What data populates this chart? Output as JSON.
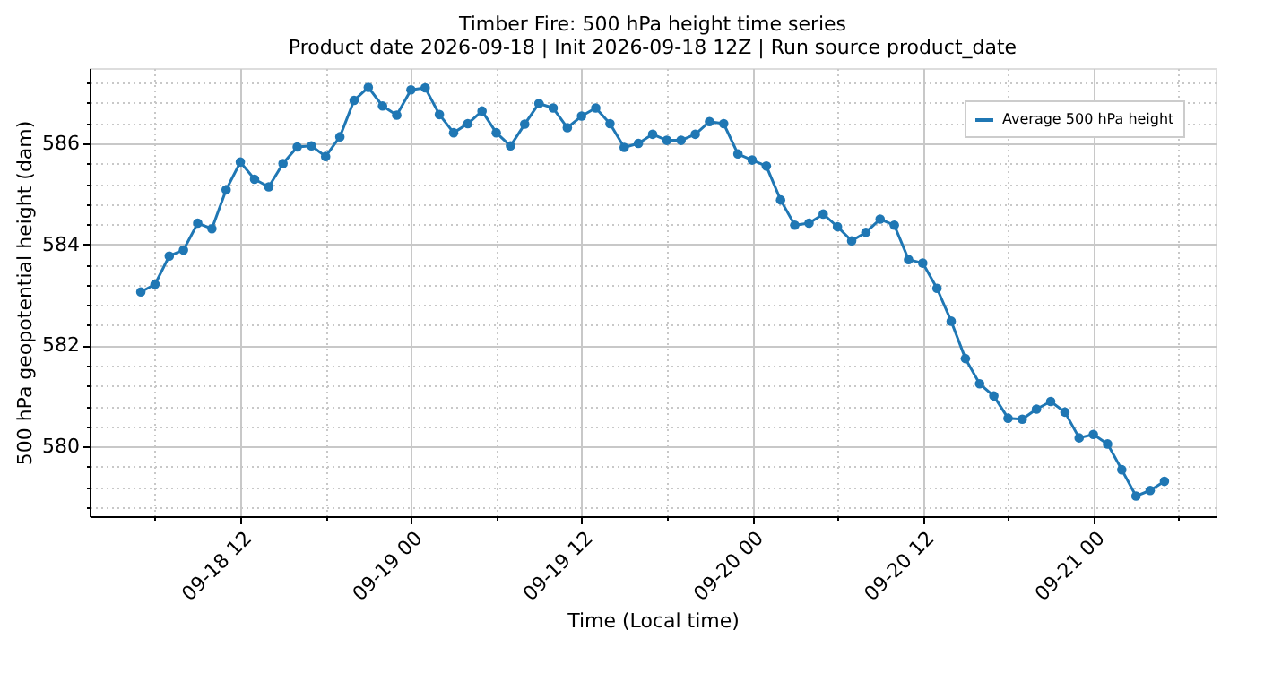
{
  "chart_data": {
    "type": "line",
    "title": "Timber Fire: 500 hPa height time series",
    "subtitle": "Product date 2026-09-18 | Init 2026-09-18 12Z | Run source product_date",
    "xlabel": "Time (Local time)",
    "ylabel": "500 hPa geopotential height (dam)",
    "x": [
      "2026-09-18T05:00",
      "2026-09-18T06:00",
      "2026-09-18T07:00",
      "2026-09-18T08:00",
      "2026-09-18T09:00",
      "2026-09-18T10:00",
      "2026-09-18T11:00",
      "2026-09-18T12:00",
      "2026-09-18T13:00",
      "2026-09-18T14:00",
      "2026-09-18T15:00",
      "2026-09-18T16:00",
      "2026-09-18T17:00",
      "2026-09-18T18:00",
      "2026-09-18T19:00",
      "2026-09-18T20:00",
      "2026-09-18T21:00",
      "2026-09-18T22:00",
      "2026-09-18T23:00",
      "2026-09-19T00:00",
      "2026-09-19T01:00",
      "2026-09-19T02:00",
      "2026-09-19T03:00",
      "2026-09-19T04:00",
      "2026-09-19T05:00",
      "2026-09-19T06:00",
      "2026-09-19T07:00",
      "2026-09-19T08:00",
      "2026-09-19T09:00",
      "2026-09-19T10:00",
      "2026-09-19T11:00",
      "2026-09-19T12:00",
      "2026-09-19T13:00",
      "2026-09-19T14:00",
      "2026-09-19T15:00",
      "2026-09-19T16:00",
      "2026-09-19T17:00",
      "2026-09-19T18:00",
      "2026-09-19T19:00",
      "2026-09-19T20:00",
      "2026-09-19T21:00",
      "2026-09-19T22:00",
      "2026-09-19T23:00",
      "2026-09-20T00:00",
      "2026-09-20T01:00",
      "2026-09-20T02:00",
      "2026-09-20T03:00",
      "2026-09-20T04:00",
      "2026-09-20T05:00",
      "2026-09-20T06:00",
      "2026-09-20T07:00",
      "2026-09-20T08:00",
      "2026-09-20T09:00",
      "2026-09-20T10:00",
      "2026-09-20T11:00",
      "2026-09-20T12:00",
      "2026-09-20T13:00",
      "2026-09-20T14:00",
      "2026-09-20T15:00",
      "2026-09-20T16:00",
      "2026-09-20T17:00",
      "2026-09-20T18:00",
      "2026-09-20T19:00",
      "2026-09-20T20:00",
      "2026-09-20T21:00",
      "2026-09-20T22:00",
      "2026-09-20T23:00",
      "2026-09-21T00:00",
      "2026-09-21T01:00",
      "2026-09-21T02:00",
      "2026-09-21T03:00",
      "2026-09-21T04:00",
      "2026-09-21T05:00"
    ],
    "series": [
      {
        "name": "Average 500 hPa height",
        "color": "#1f77b4",
        "values": [
          583.06,
          583.21,
          583.77,
          583.89,
          584.42,
          584.31,
          585.08,
          585.63,
          585.29,
          585.14,
          585.6,
          585.93,
          585.95,
          585.74,
          586.13,
          586.85,
          587.11,
          586.74,
          586.56,
          587.06,
          587.1,
          586.57,
          586.21,
          586.39,
          586.64,
          586.21,
          585.95,
          586.38,
          586.79,
          586.7,
          586.31,
          586.54,
          586.7,
          586.39,
          585.92,
          586.0,
          586.18,
          586.06,
          586.06,
          586.18,
          586.43,
          586.39,
          585.79,
          585.67,
          585.55,
          584.88,
          584.38,
          584.42,
          584.6,
          584.35,
          584.07,
          584.24,
          584.5,
          584.38,
          583.7,
          583.63,
          583.13,
          582.48,
          581.74,
          581.24,
          581.0,
          580.56,
          580.54,
          580.74,
          580.89,
          580.68,
          580.17,
          580.24,
          580.05,
          579.54,
          579.02,
          579.13,
          579.31
        ]
      }
    ],
    "xlim": [
      "2026-09-18T01:24",
      "2026-09-21T08:36"
    ],
    "xticks": [
      {
        "value": "2026-09-18T06:00",
        "label": null
      },
      {
        "value": "2026-09-18T12:00",
        "label": "09-18 12"
      },
      {
        "value": "2026-09-18T18:00",
        "label": null
      },
      {
        "value": "2026-09-19T00:00",
        "label": "09-19 00"
      },
      {
        "value": "2026-09-19T06:00",
        "label": null
      },
      {
        "value": "2026-09-19T12:00",
        "label": "09-19 12"
      },
      {
        "value": "2026-09-19T18:00",
        "label": null
      },
      {
        "value": "2026-09-20T00:00",
        "label": "09-20 00"
      },
      {
        "value": "2026-09-20T06:00",
        "label": null
      },
      {
        "value": "2026-09-20T12:00",
        "label": "09-20 12"
      },
      {
        "value": "2026-09-20T18:00",
        "label": null
      },
      {
        "value": "2026-09-21T00:00",
        "label": "09-21 00"
      },
      {
        "value": "2026-09-21T06:00",
        "label": null
      }
    ],
    "ylim": [
      578.62,
      587.49
    ],
    "yticks": [
      {
        "value": 578.8,
        "label": null
      },
      {
        "value": 579.2,
        "label": null
      },
      {
        "value": 579.6,
        "label": null
      },
      580,
      {
        "value": 580.4,
        "label": null
      },
      {
        "value": 580.8,
        "label": null
      },
      {
        "value": 581.2,
        "label": null
      },
      {
        "value": 581.6,
        "label": null
      },
      582,
      {
        "value": 582.4,
        "label": null
      },
      {
        "value": 582.8,
        "label": null
      },
      {
        "value": 583.2,
        "label": null
      },
      {
        "value": 583.6,
        "label": null
      },
      584,
      {
        "value": 584.4,
        "label": null
      },
      {
        "value": 584.8,
        "label": null
      },
      {
        "value": 585.2,
        "label": null
      },
      {
        "value": 585.6,
        "label": null
      },
      586,
      {
        "value": 586.4,
        "label": null
      },
      {
        "value": 586.8,
        "label": null
      },
      {
        "value": 587.2,
        "label": null
      }
    ],
    "grid": true,
    "legend": "top right",
    "marker": "circle",
    "line_style": "solid"
  }
}
